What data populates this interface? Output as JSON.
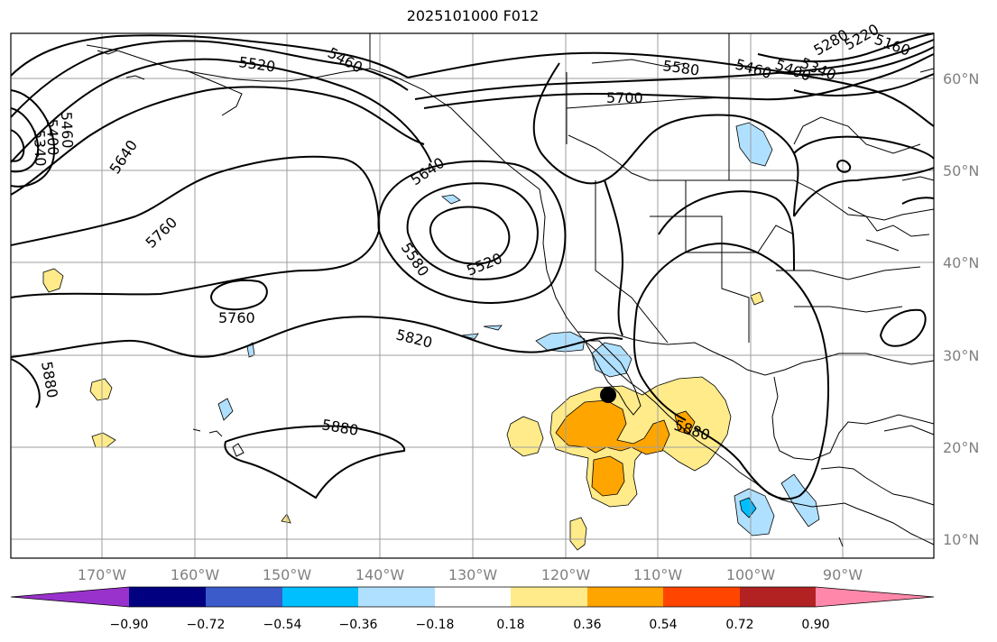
{
  "title": "2025101000 F012",
  "colors": {
    "frame": "#000000",
    "grid": "#9e9e9e",
    "coast": "#000000",
    "contour": "#000000",
    "marker": "#000000"
  },
  "lat_labels": [
    "60°N",
    "50°N",
    "40°N",
    "30°N",
    "20°N",
    "10°N"
  ],
  "lon_labels": [
    "170°W",
    "160°W",
    "150°W",
    "140°W",
    "130°W",
    "120°W",
    "110°W",
    "100°W",
    "90°W"
  ],
  "contour_labels": [
    {
      "id": "c5460a",
      "text": "5460"
    },
    {
      "id": "c5520a",
      "text": "5520"
    },
    {
      "id": "c5580a",
      "text": "5580"
    },
    {
      "id": "c5460b",
      "text": "5460"
    },
    {
      "id": "c5400a",
      "text": "5400"
    },
    {
      "id": "c5340a",
      "text": "5340"
    },
    {
      "id": "c5280a",
      "text": "5280"
    },
    {
      "id": "c5220a",
      "text": "5220"
    },
    {
      "id": "c5160a",
      "text": "5160"
    },
    {
      "id": "c5700a",
      "text": "5700"
    },
    {
      "id": "c5460c",
      "text": "5460"
    },
    {
      "id": "c5400c",
      "text": "5400"
    },
    {
      "id": "c5340c",
      "text": "5340"
    },
    {
      "id": "c5640a",
      "text": "5640"
    },
    {
      "id": "c5760a",
      "text": "5760"
    },
    {
      "id": "c5640b",
      "text": "5640"
    },
    {
      "id": "c5580b",
      "text": "5580"
    },
    {
      "id": "c5520b",
      "text": "5520"
    },
    {
      "id": "c5760b",
      "text": "5760"
    },
    {
      "id": "c5820a",
      "text": "5820"
    },
    {
      "id": "c5880a",
      "text": "5880"
    },
    {
      "id": "c5880b",
      "text": "5880"
    },
    {
      "id": "c5880c",
      "text": "5880"
    }
  ],
  "colorbar": {
    "colors": [
      "#9932cc",
      "#000080",
      "#3a5bc9",
      "#00bfff",
      "#b0e0ff",
      "#ffffff",
      "#ffeb8a",
      "#ffa500",
      "#ff4500",
      "#b22222",
      "#ff88aa"
    ],
    "ticks": [
      "−0.90",
      "−0.72",
      "−0.54",
      "−0.36",
      "−0.18",
      "0.18",
      "0.36",
      "0.54",
      "0.72",
      "0.90"
    ]
  }
}
